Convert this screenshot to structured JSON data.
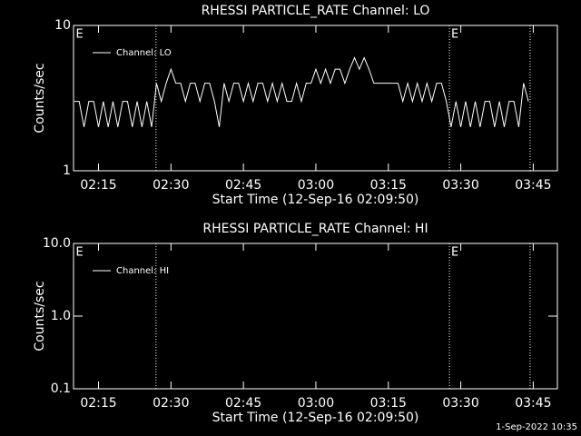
{
  "chart_data": [
    {
      "type": "line",
      "title": "RHESSI PARTICLE_RATE Channel: LO",
      "x_label": "Start Time (12-Sep-16 02:09:50)",
      "y_label": "Counts/sec",
      "log_y": true,
      "legend": "top-left",
      "xlim": [
        129.83,
        230
      ],
      "xticks": [
        {
          "value": 135,
          "label": "02:15"
        },
        {
          "value": 150,
          "label": "02:30"
        },
        {
          "value": 165,
          "label": "02:45"
        },
        {
          "value": 180,
          "label": "03:00"
        },
        {
          "value": 195,
          "label": "03:15"
        },
        {
          "value": 210,
          "label": "03:30"
        },
        {
          "value": 225,
          "label": "03:45"
        }
      ],
      "ylim": [
        1,
        10
      ],
      "yticks": [
        1,
        10
      ],
      "markers": [
        146.9,
        207.65,
        224.35
      ],
      "annotations": [
        {
          "text": "E",
          "x": 130.3
        },
        {
          "text": "E",
          "x": 208
        }
      ],
      "x": [
        130,
        131,
        132,
        133,
        134,
        135,
        136,
        137,
        138,
        139,
        140,
        141,
        142,
        143,
        144,
        145,
        146,
        147,
        148,
        149,
        150,
        151,
        152,
        153,
        154,
        155,
        156,
        157,
        158,
        159,
        160,
        161,
        162,
        163,
        164,
        165,
        166,
        167,
        168,
        169,
        170,
        171,
        172,
        173,
        174,
        175,
        176,
        177,
        178,
        179,
        180,
        181,
        182,
        183,
        184,
        185,
        186,
        187,
        188,
        189,
        190,
        191,
        192,
        193,
        194,
        195,
        196,
        197,
        198,
        199,
        200,
        201,
        202,
        203,
        204,
        205,
        206,
        207,
        208,
        209,
        210,
        211,
        212,
        213,
        214,
        215,
        216,
        217,
        218,
        219,
        220,
        221,
        222,
        223,
        224
      ],
      "series": [
        {
          "name": "Channel: LO",
          "color": "#ffffff",
          "values": [
            3,
            3,
            2,
            3,
            3,
            2,
            3,
            2,
            3,
            2,
            3,
            3,
            2,
            3,
            2,
            3,
            2,
            4,
            3,
            4,
            5,
            4,
            4,
            3,
            4,
            4,
            3,
            4,
            4,
            3,
            2,
            4,
            3,
            4,
            4,
            3,
            4,
            3,
            4,
            4,
            3,
            4,
            3,
            4,
            3,
            3,
            4,
            3,
            4,
            4,
            5,
            4,
            5,
            4,
            5,
            5,
            4,
            5,
            6,
            5,
            6,
            5,
            4,
            4,
            4,
            4,
            4,
            4,
            3,
            4,
            3,
            4,
            3,
            4,
            3,
            4,
            4,
            3,
            2,
            3,
            2,
            3,
            2,
            3,
            2,
            3,
            3,
            2,
            3,
            2,
            3,
            3,
            2,
            4,
            3
          ]
        }
      ]
    },
    {
      "type": "line",
      "title": "RHESSI PARTICLE_RATE Channel: HI",
      "x_label": "Start Time (12-Sep-16 02:09:50)",
      "y_label": "Counts/sec",
      "log_y": true,
      "legend": "top-left",
      "xlim": [
        129.83,
        230
      ],
      "xticks": [
        {
          "value": 135,
          "label": "02:15"
        },
        {
          "value": 150,
          "label": "02:30"
        },
        {
          "value": 165,
          "label": "02:45"
        },
        {
          "value": 180,
          "label": "03:00"
        },
        {
          "value": 195,
          "label": "03:15"
        },
        {
          "value": 210,
          "label": "03:30"
        },
        {
          "value": 225,
          "label": "03:45"
        }
      ],
      "ylim": [
        0.1,
        10
      ],
      "yticks": [
        0.1,
        {
          "value": 1,
          "label": "1.0"
        },
        {
          "value": 10,
          "label": "10.0"
        }
      ],
      "markers": [
        146.9,
        207.65,
        224.35
      ],
      "annotations": [
        {
          "text": "E",
          "x": 130.3
        },
        {
          "text": "E",
          "x": 208
        }
      ],
      "x": [],
      "series": [
        {
          "name": "Channel: HI",
          "color": "#ffffff",
          "values": []
        }
      ]
    }
  ],
  "footer": "1-Sep-2022 10:35"
}
